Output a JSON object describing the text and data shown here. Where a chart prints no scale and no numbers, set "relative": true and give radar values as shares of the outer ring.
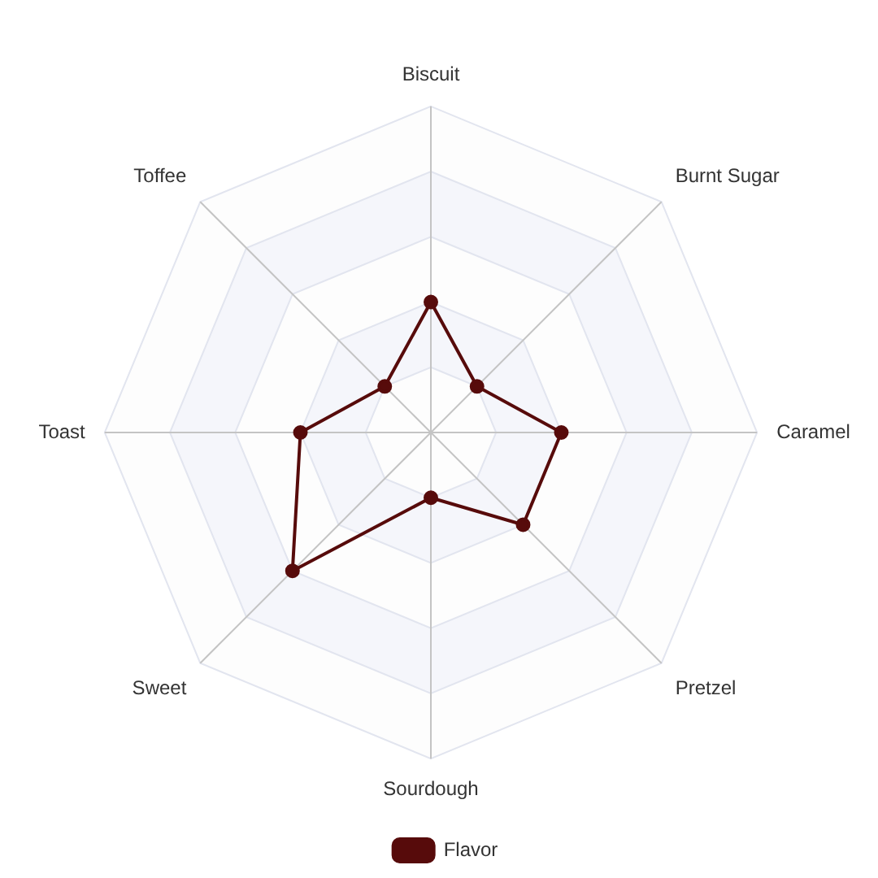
{
  "chart_data": {
    "type": "radar",
    "categories": [
      "Biscuit",
      "Burnt Sugar",
      "Caramel",
      "Pretzel",
      "Sourdough",
      "Sweet",
      "Toast",
      "Toffee"
    ],
    "series": [
      {
        "name": "Flavor",
        "color": "#570b0b",
        "values": [
          0.4,
          0.2,
          0.4,
          0.4,
          0.2,
          0.6,
          0.4,
          0.2
        ]
      }
    ],
    "relative": true,
    "grid": true,
    "legend": "bottom",
    "marker": "circle"
  }
}
